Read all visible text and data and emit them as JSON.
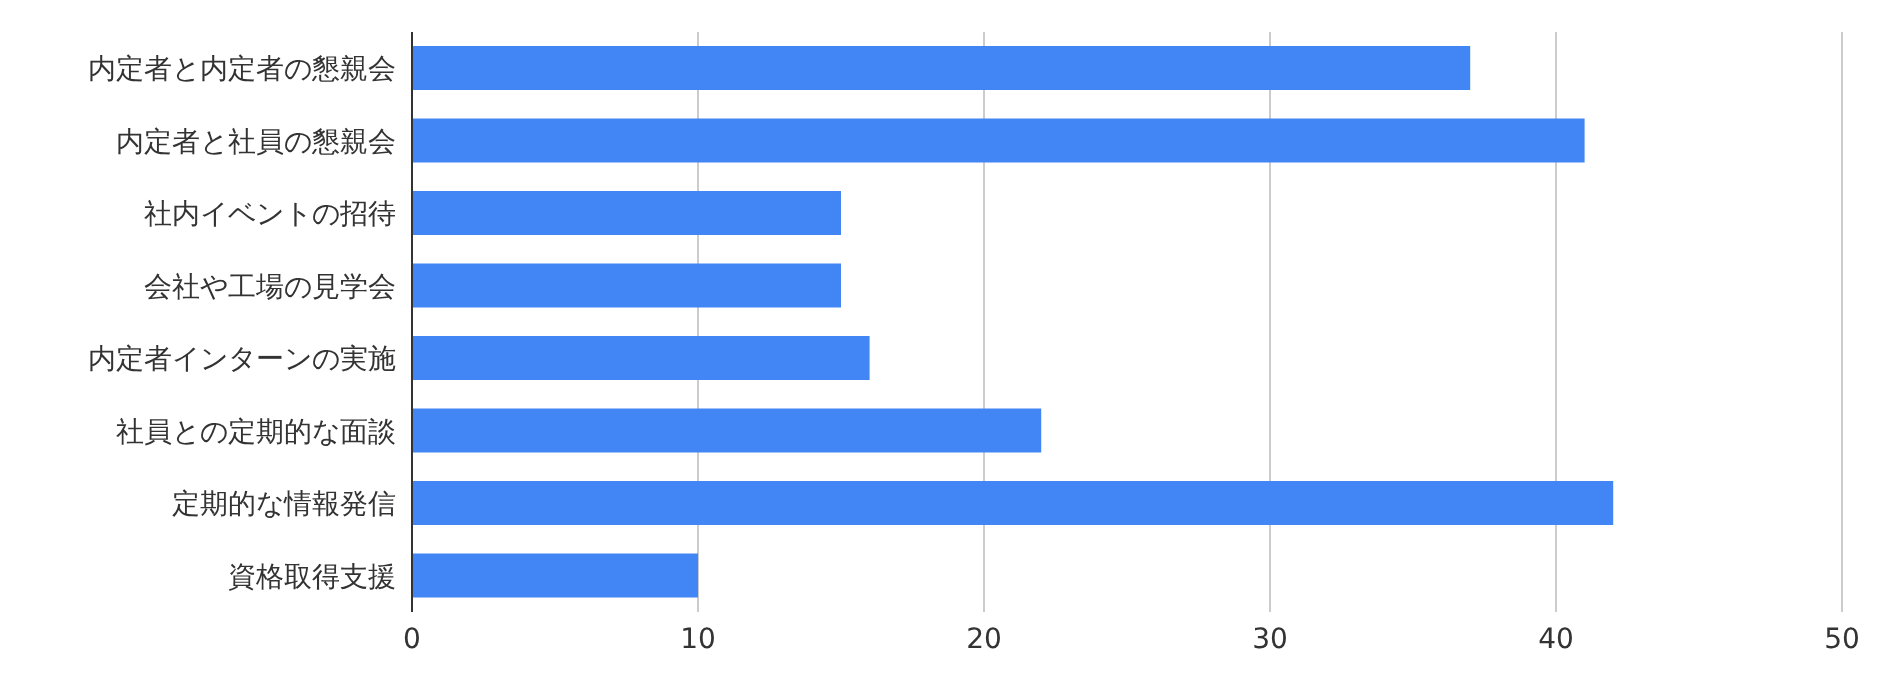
{
  "chart_data": {
    "type": "bar",
    "orientation": "horizontal",
    "categories": [
      "内定者と内定者の懇親会",
      "内定者と社員の懇親会",
      "社内イベントの招待",
      "会社や工場の見学会",
      "内定者インターンの実施",
      "社員との定期的な面談",
      "定期的な情報発信",
      "資格取得支援"
    ],
    "values": [
      37,
      41,
      15,
      15,
      16,
      22,
      42,
      10
    ],
    "color": "#4285f4",
    "xlim": [
      0,
      50
    ],
    "xticks": [
      0,
      10,
      20,
      30,
      40,
      50
    ],
    "grid": "x"
  }
}
